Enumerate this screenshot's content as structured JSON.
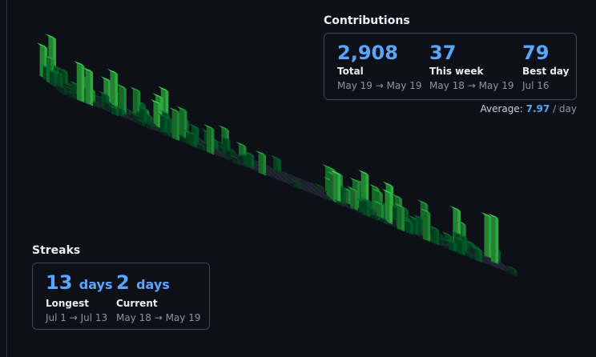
{
  "contributions": {
    "title": "Contributions",
    "total": {
      "value": "2,908",
      "label": "Total",
      "range": "May 19 → May 19"
    },
    "this_week": {
      "value": "37",
      "label": "This week",
      "range": "May 18 → May 19"
    },
    "best_day": {
      "value": "79",
      "label": "Best day",
      "range": "Jul 16"
    },
    "average": {
      "label": "Average:",
      "value": "7.97",
      "unit": "/ day"
    }
  },
  "streaks": {
    "title": "Streaks",
    "longest": {
      "value": "13",
      "unit": "days",
      "label": "Longest",
      "range": "Jul 1 → Jul 13"
    },
    "current": {
      "value": "2",
      "unit": "days",
      "label": "Current",
      "range": "May 18 → May 19"
    }
  },
  "colors": {
    "background": "#0d1117",
    "accent": "#58a6ff",
    "empty_cell": "#1c222b",
    "level_1": "#0e4429",
    "level_2": "#006d32",
    "level_3": "#26a641",
    "level_4": "#39d353"
  }
}
